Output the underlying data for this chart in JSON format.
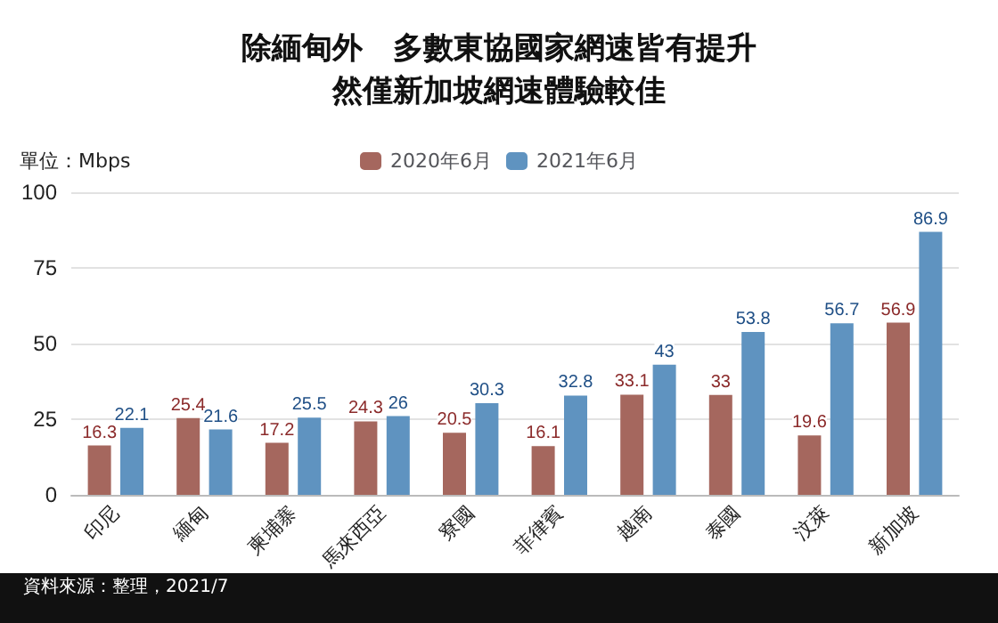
{
  "chart_data": {
    "type": "bar",
    "title": "除緬甸外　多數東協國家網速皆有提升",
    "subtitle": "然僅新加坡網速體驗較佳",
    "ylabel": "單位：Mbps",
    "categories": [
      "印尼",
      "緬甸",
      "柬埔寨",
      "馬來西亞",
      "寮國",
      "菲律賓",
      "越南",
      "泰國",
      "汶萊",
      "新加坡"
    ],
    "series": [
      {
        "name": "2020年6月",
        "color": "#a5675e",
        "values": [
          16.3,
          25.4,
          17.2,
          24.3,
          20.5,
          16.1,
          33.1,
          33,
          19.6,
          56.9
        ]
      },
      {
        "name": "2021年6月",
        "color": "#5f93c0",
        "values": [
          22.1,
          21.6,
          25.5,
          26,
          30.3,
          32.8,
          43,
          53.8,
          56.7,
          86.9
        ]
      }
    ],
    "ylim": [
      0,
      100
    ],
    "yticks": [
      0,
      25,
      50,
      75,
      100
    ],
    "grid": "y",
    "legend": "top",
    "data_labels": true,
    "annotations": [
      "資料來源：整理，2021/7"
    ]
  }
}
